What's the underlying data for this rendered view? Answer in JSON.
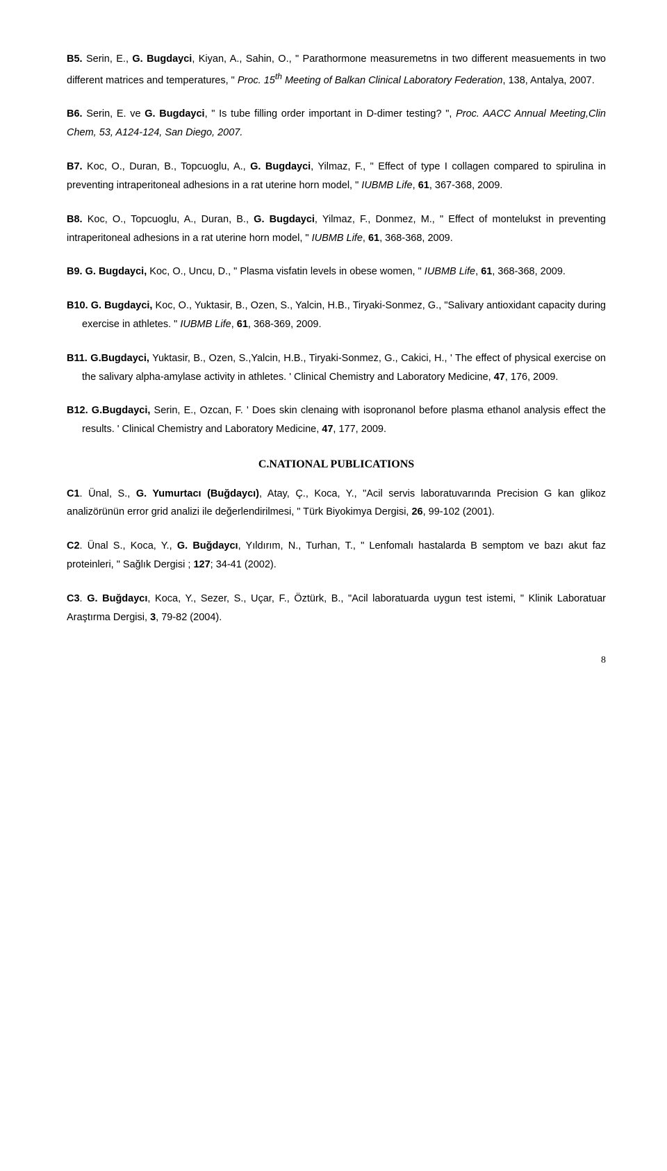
{
  "b5": {
    "label": "B5.",
    "authors_pre": " Serin, E., ",
    "bold_author": "G. Bugdayci",
    "authors_post": ", Kiyan, A., Sahin, O., \" Parathormone measuremetns in two different measuements in two different matrices and temperatures, \" ",
    "journal": "Proc. 15",
    "sup": "th",
    "journal_post": " Meeting of Balkan Clinical Laboratory Federation",
    "tail": ", 138, Antalya, 2007."
  },
  "b6": {
    "label": "B6.",
    "authors_pre": " Serin, E. ve ",
    "bold_author": "G. Bugdayci",
    "authors_post": ", \" Is tube filling order important in D-dimer testing? \", ",
    "journal": "Proc. AACC Annual Meeting,Clin Chem, 53, A124-124, San Diego, 2007."
  },
  "b7": {
    "label": "B7.",
    "authors_pre": " Koc, O., Duran, B., Topcuoglu, A., ",
    "bold_author": "G. Bugdayci",
    "authors_post": ", Yilmaz, F., \" Effect of type I collagen compared to spirulina in preventing intraperitoneal adhesions in a rat uterine horn model, \" ",
    "journal": "IUBMB Life",
    "tail_pre": ", ",
    "vol": "61",
    "tail": ", 367-368, 2009."
  },
  "b8": {
    "label": "B8.",
    "authors_pre": " Koc, O., Topcuoglu, A., Duran, B., ",
    "bold_author": "G. Bugdayci",
    "authors_post": ", Yilmaz, F., Donmez, M., \" Effect of montelukst in preventing intraperitoneal adhesions in a rat uterine horn model, \" ",
    "journal": "IUBMB Life",
    "tail_pre": ", ",
    "vol": "61",
    "tail": ", 368-368, 2009."
  },
  "b9": {
    "label": "B9.",
    "bold_author": " G. Bugdayci,",
    "authors_post": " Koc, O., Uncu, D., \" Plasma visfatin levels in obese women, \" ",
    "journal": "IUBMB Life",
    "tail_pre": ", ",
    "vol": "61",
    "tail": ", 368-368, 2009."
  },
  "b10": {
    "label": "B10.",
    "bold_author": " G. Bugdayci,",
    "authors_post": " Koc, O., Yuktasir, B., Ozen, S., Yalcin, H.B., Tiryaki-Sonmez, G., \"Salivary antioxidant capacity during exercise in athletes. \" ",
    "journal": "IUBMB Life",
    "tail_pre": ", ",
    "vol": "61",
    "tail": ", 368-369, 2009."
  },
  "b11": {
    "label": "B11.",
    "bold_author": " G.Bugdayci,",
    "authors_post": " Yuktasir, B., Ozen, S.,Yalcin, H.B., Tiryaki-Sonmez, G., Cakici, H., ' The effect of physical exercise on the salivary alpha-amylase activity in athletes. ' Clinical Chemistry and Laboratory Medicine, ",
    "vol": "47",
    "tail": ", 176, 2009."
  },
  "b12": {
    "label": "B12.",
    "bold_author": " G.Bugdayci,",
    "authors_post": " Serin, E., Ozcan, F. ' Does skin clenaing with isopronanol before plasma ethanol analysis effect the results. ' Clinical Chemistry and Laboratory Medicine, ",
    "vol": "47",
    "tail": ", 177, 2009."
  },
  "section_c": "C.NATIONAL PUBLICATIONS",
  "c1": {
    "label": "C1",
    "authors_pre": ". Ünal, S., ",
    "bold_author": "G. Yumurtacı (Buğdaycı)",
    "authors_post": ", Atay, Ç., Koca, Y., \"Acil servis laboratuvarında Precision G kan glikoz analizörünün error grid analizi ile değerlendirilmesi, \" Türk Biyokimya Dergisi, ",
    "vol": "26",
    "tail": ", 99-102 (2001)."
  },
  "c2": {
    "label": "C2",
    "authors_pre": ". Ünal S., Koca, Y., ",
    "bold_author": "G. Buğdaycı",
    "authors_post": ", Yıldırım, N., Turhan, T., \" Lenfomalı hastalarda B semptom ve bazı akut faz proteinleri, \" Sağlık Dergisi ; ",
    "vol": "127",
    "tail": "; 34-41 (2002)."
  },
  "c3": {
    "label": "C3",
    "authors_pre": ". ",
    "bold_author": "G. Buğdaycı",
    "authors_post": ", Koca, Y., Sezer, S., Uçar, F., Öztürk, B., \"Acil laboratuarda uygun test istemi, \" Klinik Laboratuar Araştırma Dergisi, ",
    "vol": "3",
    "tail": ", 79-82 (2004)."
  },
  "pagenum": "8"
}
